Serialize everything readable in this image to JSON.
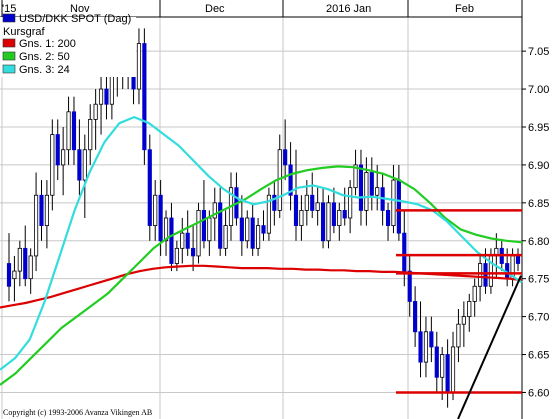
{
  "chart_data": {
    "type": "candlestick",
    "title": "USD/DKK SPOT (Dag)",
    "x_labels": [
      "'15",
      "Nov",
      "Dec",
      "2016 Jan",
      "Feb"
    ],
    "y_ticks": [
      "7.05",
      "7.00",
      "6.95",
      "6.90",
      "6.85",
      "6.80",
      "6.75",
      "6.70",
      "6.65",
      "6.60"
    ],
    "ylim": [
      6.565,
      7.095
    ],
    "grid": true,
    "legend": {
      "placement": "top-left",
      "items": [
        {
          "label": "USD/DKK SPOT (Dag)",
          "color": "#0000cc"
        },
        {
          "label": "Kursgraf",
          "color": null
        },
        {
          "label": "Gns. 1: 200",
          "color": "#dd0000"
        },
        {
          "label": "Gns. 2: 50",
          "color": "#22cc22"
        },
        {
          "label": "Gns. 3: 24",
          "color": "#33dddd"
        }
      ]
    },
    "candles": [
      [
        6.77,
        6.81,
        6.72,
        6.74
      ],
      [
        6.75,
        6.78,
        6.72,
        6.76
      ],
      [
        6.76,
        6.8,
        6.74,
        6.79
      ],
      [
        6.79,
        6.82,
        6.74,
        6.75
      ],
      [
        6.75,
        6.79,
        6.73,
        6.78
      ],
      [
        6.78,
        6.89,
        6.76,
        6.86
      ],
      [
        6.86,
        6.88,
        6.8,
        6.82
      ],
      [
        6.82,
        6.88,
        6.79,
        6.86
      ],
      [
        6.86,
        6.96,
        6.84,
        6.94
      ],
      [
        6.94,
        6.96,
        6.88,
        6.9
      ],
      [
        6.9,
        6.95,
        6.86,
        6.92
      ],
      [
        6.92,
        6.99,
        6.9,
        6.97
      ],
      [
        6.97,
        6.99,
        6.9,
        6.92
      ],
      [
        6.92,
        6.96,
        6.86,
        6.88
      ],
      [
        6.88,
        6.94,
        6.83,
        6.92
      ],
      [
        6.92,
        6.98,
        6.9,
        6.96
      ],
      [
        6.96,
        7.0,
        6.92,
        6.98
      ],
      [
        6.98,
        7.02,
        6.94,
        7.0
      ],
      [
        7.0,
        7.03,
        6.96,
        6.98
      ],
      [
        6.98,
        7.04,
        6.96,
        7.02
      ],
      [
        7.02,
        7.05,
        6.99,
        7.04
      ],
      [
        7.04,
        7.06,
        7.0,
        7.03
      ],
      [
        7.03,
        7.07,
        7.0,
        7.05
      ],
      [
        7.05,
        7.06,
        6.98,
        7.0
      ],
      [
        7.0,
        7.08,
        6.98,
        7.06
      ],
      [
        7.06,
        7.08,
        6.9,
        6.92
      ],
      [
        6.92,
        6.94,
        6.8,
        6.82
      ],
      [
        6.82,
        6.88,
        6.8,
        6.86
      ],
      [
        6.86,
        6.88,
        6.78,
        6.8
      ],
      [
        6.8,
        6.84,
        6.78,
        6.83
      ],
      [
        6.83,
        6.85,
        6.76,
        6.77
      ],
      [
        6.77,
        6.8,
        6.76,
        6.79
      ],
      [
        6.79,
        6.83,
        6.77,
        6.81
      ],
      [
        6.81,
        6.84,
        6.78,
        6.79
      ],
      [
        6.79,
        6.82,
        6.76,
        6.78
      ],
      [
        6.78,
        6.85,
        6.77,
        6.84
      ],
      [
        6.84,
        6.88,
        6.79,
        6.8
      ],
      [
        6.8,
        6.84,
        6.78,
        6.83
      ],
      [
        6.83,
        6.87,
        6.8,
        6.85
      ],
      [
        6.85,
        6.87,
        6.78,
        6.79
      ],
      [
        6.79,
        6.84,
        6.78,
        6.82
      ],
      [
        6.82,
        6.89,
        6.8,
        6.87
      ],
      [
        6.87,
        6.89,
        6.82,
        6.83
      ],
      [
        6.83,
        6.86,
        6.78,
        6.8
      ],
      [
        6.8,
        6.84,
        6.79,
        6.83
      ],
      [
        6.83,
        6.85,
        6.78,
        6.79
      ],
      [
        6.79,
        6.83,
        6.78,
        6.82
      ],
      [
        6.82,
        6.84,
        6.8,
        6.81
      ],
      [
        6.81,
        6.87,
        6.8,
        6.86
      ],
      [
        6.86,
        6.88,
        6.82,
        6.84
      ],
      [
        6.84,
        6.94,
        6.83,
        6.92
      ],
      [
        6.92,
        6.96,
        6.88,
        6.9
      ],
      [
        6.9,
        6.93,
        6.84,
        6.86
      ],
      [
        6.86,
        6.92,
        6.8,
        6.82
      ],
      [
        6.82,
        6.86,
        6.8,
        6.84
      ],
      [
        6.84,
        6.88,
        6.82,
        6.86
      ],
      [
        6.86,
        6.89,
        6.83,
        6.84
      ],
      [
        6.84,
        6.87,
        6.82,
        6.85
      ],
      [
        6.85,
        6.87,
        6.79,
        6.8
      ],
      [
        6.8,
        6.86,
        6.79,
        6.85
      ],
      [
        6.85,
        6.87,
        6.81,
        6.82
      ],
      [
        6.82,
        6.85,
        6.8,
        6.84
      ],
      [
        6.84,
        6.87,
        6.82,
        6.83
      ],
      [
        6.83,
        6.88,
        6.81,
        6.87
      ],
      [
        6.87,
        6.92,
        6.86,
        6.9
      ],
      [
        6.9,
        6.92,
        6.82,
        6.84
      ],
      [
        6.84,
        6.91,
        6.82,
        6.89
      ],
      [
        6.89,
        6.91,
        6.84,
        6.86
      ],
      [
        6.86,
        6.9,
        6.84,
        6.87
      ],
      [
        6.87,
        6.89,
        6.82,
        6.84
      ],
      [
        6.84,
        6.85,
        6.8,
        6.82
      ],
      [
        6.82,
        6.9,
        6.81,
        6.88
      ],
      [
        6.88,
        6.9,
        6.8,
        6.81
      ],
      [
        6.81,
        6.84,
        6.74,
        6.76
      ],
      [
        6.76,
        6.78,
        6.7,
        6.72
      ],
      [
        6.72,
        6.74,
        6.66,
        6.68
      ],
      [
        6.68,
        6.72,
        6.62,
        6.64
      ],
      [
        6.64,
        6.7,
        6.62,
        6.68
      ],
      [
        6.68,
        6.7,
        6.64,
        6.66
      ],
      [
        6.66,
        6.68,
        6.6,
        6.62
      ],
      [
        6.62,
        6.66,
        6.59,
        6.65
      ],
      [
        6.65,
        6.67,
        6.58,
        6.6
      ],
      [
        6.6,
        6.68,
        6.59,
        6.66
      ],
      [
        6.66,
        6.71,
        6.64,
        6.69
      ],
      [
        6.69,
        6.72,
        6.66,
        6.7
      ],
      [
        6.7,
        6.73,
        6.68,
        6.72
      ],
      [
        6.72,
        6.75,
        6.7,
        6.74
      ],
      [
        6.74,
        6.78,
        6.72,
        6.77
      ],
      [
        6.77,
        6.79,
        6.73,
        6.74
      ],
      [
        6.74,
        6.79,
        6.73,
        6.78
      ],
      [
        6.78,
        6.81,
        6.75,
        6.79
      ],
      [
        6.79,
        6.8,
        6.76,
        6.77
      ],
      [
        6.77,
        6.79,
        6.74,
        6.75
      ],
      [
        6.75,
        6.79,
        6.74,
        6.78
      ],
      [
        6.78,
        6.79,
        6.76,
        6.77
      ]
    ],
    "moving_averages": [
      {
        "label": "Gns. 1: 200",
        "color": "#dd0000",
        "values": [
          6.712,
          6.715,
          6.718,
          6.722,
          6.726,
          6.731,
          6.736,
          6.741,
          6.746,
          6.751,
          6.756,
          6.76,
          6.763,
          6.765,
          6.766,
          6.767,
          6.767,
          6.766,
          6.765,
          6.764,
          6.764,
          6.764,
          6.763,
          6.763,
          6.762,
          6.762,
          6.761,
          6.761,
          6.76,
          6.76,
          6.759,
          6.759,
          6.758,
          6.757,
          6.756,
          6.755,
          6.754,
          6.753,
          6.752,
          6.751,
          6.75,
          6.748
        ]
      },
      {
        "label": "Gns. 2: 50",
        "color": "#22cc22",
        "values": [
          6.61,
          6.625,
          6.645,
          6.665,
          6.685,
          6.7,
          6.715,
          6.73,
          6.75,
          6.77,
          6.79,
          6.805,
          6.815,
          6.825,
          6.835,
          6.845,
          6.855,
          6.868,
          6.88,
          6.888,
          6.893,
          6.896,
          6.898,
          6.897,
          6.893,
          6.888,
          6.88,
          6.868,
          6.85,
          6.83,
          6.815,
          6.808,
          6.803,
          6.8,
          6.798
        ]
      },
      {
        "label": "Gns. 3: 24",
        "color": "#33dddd",
        "values": [
          6.63,
          6.645,
          6.67,
          6.72,
          6.78,
          6.84,
          6.89,
          6.93,
          6.955,
          6.963,
          6.955,
          6.94,
          6.925,
          6.905,
          6.885,
          6.868,
          6.855,
          6.848,
          6.852,
          6.86,
          6.87,
          6.873,
          6.868,
          6.86,
          6.857,
          6.858,
          6.855,
          6.852,
          6.848,
          6.84,
          6.825,
          6.805,
          6.785,
          6.77,
          6.758,
          6.745
        ]
      }
    ],
    "horizontal_levels": [
      6.84,
      6.781,
      6.757,
      6.6
    ],
    "trendline": {
      "from": 6.565,
      "to": 6.754
    },
    "copyright": "Copyright (c) 1993-2006 Avanza Vikingen AB"
  }
}
